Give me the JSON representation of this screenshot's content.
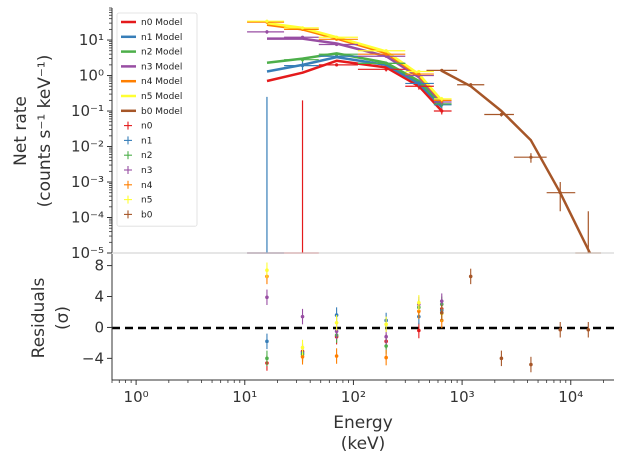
{
  "chart_data": [
    {
      "type": "scatter",
      "subtype": "spectrum",
      "xscale": "log",
      "yscale": "log",
      "xlim": [
        0.6,
        25000
      ],
      "ylim": [
        1e-05,
        80
      ],
      "ylabel_lines": [
        "Net rate",
        "(counts s⁻¹ keV⁻¹)"
      ],
      "yticks": [
        {
          "value": 10,
          "label": "10¹"
        },
        {
          "value": 1,
          "label": "10⁰"
        },
        {
          "value": 0.1,
          "label": "10⁻¹"
        },
        {
          "value": 0.01,
          "label": "10⁻²"
        },
        {
          "value": 0.001,
          "label": "10⁻³"
        },
        {
          "value": 0.0001,
          "label": "10⁻⁴"
        },
        {
          "value": 1e-05,
          "label": "10⁻⁵"
        }
      ],
      "legend_position": "upper-left",
      "models": [
        {
          "name": "n0 Model",
          "color": "#e41a1c",
          "points": [
            [
              16,
              0.7
            ],
            [
              34,
              1.2
            ],
            [
              70,
              2.6
            ],
            [
              200,
              1.7
            ],
            [
              400,
              0.5
            ],
            [
              650,
              0.1
            ]
          ]
        },
        {
          "name": "n1 Model",
          "color": "#377eb8",
          "points": [
            [
              16,
              1.3
            ],
            [
              34,
              2.0
            ],
            [
              70,
              3.3
            ],
            [
              200,
              2.0
            ],
            [
              400,
              0.6
            ],
            [
              650,
              0.13
            ]
          ]
        },
        {
          "name": "n2 Model",
          "color": "#4daf4a",
          "points": [
            [
              16,
              2.3
            ],
            [
              34,
              3.0
            ],
            [
              70,
              4.2
            ],
            [
              200,
              2.3
            ],
            [
              400,
              0.7
            ],
            [
              650,
              0.15
            ]
          ]
        },
        {
          "name": "n3 Model",
          "color": "#984ea3",
          "points": [
            [
              16,
              11
            ],
            [
              34,
              11
            ],
            [
              70,
              8
            ],
            [
              200,
              3.5
            ],
            [
              400,
              0.9
            ],
            [
              650,
              0.17
            ]
          ]
        },
        {
          "name": "n4 Model",
          "color": "#ff7f00",
          "points": [
            [
              16,
              27
            ],
            [
              34,
              20
            ],
            [
              70,
              11
            ],
            [
              200,
              4.3
            ],
            [
              400,
              1.0
            ],
            [
              650,
              0.19
            ]
          ]
        },
        {
          "name": "n5 Model",
          "color": "#ffff33",
          "points": [
            [
              16,
              30
            ],
            [
              34,
              22
            ],
            [
              70,
              12
            ],
            [
              200,
              4.8
            ],
            [
              400,
              1.1
            ],
            [
              650,
              0.2
            ]
          ]
        },
        {
          "name": "b0 Model",
          "color": "#a65628",
          "points": [
            [
              650,
              1.35
            ],
            [
              1200,
              0.5
            ],
            [
              2300,
              0.1
            ],
            [
              4300,
              0.015
            ],
            [
              8000,
              0.0005
            ],
            [
              15000,
              8e-06
            ]
          ]
        }
      ],
      "data": [
        {
          "name": "n0",
          "color": "#e41a1c",
          "points": [
            {
              "x": 16,
              "xlo": 10.5,
              "xhi": 23,
              "y": 1e-05,
              "ylo": 1e-05,
              "yhi": 1e-05
            },
            {
              "x": 34,
              "xlo": 23,
              "xhi": 48,
              "y": 1e-05,
              "ylo": 1e-05,
              "yhi": 0.2
            },
            {
              "x": 70,
              "xlo": 48,
              "xhi": 110,
              "y": 2.0,
              "ylo": 1.8,
              "yhi": 2.2
            },
            {
              "x": 200,
              "xlo": 110,
              "xhi": 300,
              "y": 1.5,
              "ylo": 1.3,
              "yhi": 1.7
            },
            {
              "x": 400,
              "xlo": 300,
              "xhi": 550,
              "y": 0.5,
              "ylo": 0.4,
              "yhi": 0.6
            },
            {
              "x": 650,
              "xlo": 550,
              "xhi": 800,
              "y": 0.1,
              "ylo": 0.08,
              "yhi": 0.12
            }
          ]
        },
        {
          "name": "n1",
          "color": "#377eb8",
          "points": [
            {
              "x": 16,
              "xlo": 10.5,
              "xhi": 23,
              "y": 1e-05,
              "ylo": 1e-05,
              "yhi": 0.25
            },
            {
              "x": 34,
              "xlo": 23,
              "xhi": 48,
              "y": 1.9,
              "ylo": 1.4,
              "yhi": 2.5
            },
            {
              "x": 70,
              "xlo": 48,
              "xhi": 110,
              "y": 3.5,
              "ylo": 3.2,
              "yhi": 3.8
            },
            {
              "x": 200,
              "xlo": 110,
              "xhi": 300,
              "y": 2.2,
              "ylo": 2.0,
              "yhi": 2.4
            },
            {
              "x": 400,
              "xlo": 300,
              "xhi": 550,
              "y": 0.6,
              "ylo": 0.5,
              "yhi": 0.7
            },
            {
              "x": 650,
              "xlo": 550,
              "xhi": 800,
              "y": 0.15,
              "ylo": 0.12,
              "yhi": 0.18
            }
          ]
        },
        {
          "name": "n2",
          "color": "#4daf4a",
          "points": [
            {
              "x": 34,
              "xlo": 23,
              "xhi": 48,
              "y": 2.8,
              "ylo": 2.4,
              "yhi": 3.2
            },
            {
              "x": 70,
              "xlo": 48,
              "xhi": 110,
              "y": 4.0,
              "ylo": 3.7,
              "yhi": 4.3
            },
            {
              "x": 200,
              "xlo": 110,
              "xhi": 300,
              "y": 2.2,
              "ylo": 2.0,
              "yhi": 2.4
            },
            {
              "x": 650,
              "xlo": 550,
              "xhi": 800,
              "y": 0.16,
              "ylo": 0.13,
              "yhi": 0.19
            }
          ]
        },
        {
          "name": "n3",
          "color": "#984ea3",
          "points": [
            {
              "x": 16,
              "xlo": 10.5,
              "xhi": 23,
              "y": 17,
              "ylo": 15,
              "yhi": 19
            },
            {
              "x": 34,
              "xlo": 23,
              "xhi": 48,
              "y": 12,
              "ylo": 11,
              "yhi": 13
            },
            {
              "x": 70,
              "xlo": 48,
              "xhi": 110,
              "y": 7.5,
              "ylo": 7,
              "yhi": 8
            },
            {
              "x": 200,
              "xlo": 110,
              "xhi": 300,
              "y": 3.5,
              "ylo": 3.2,
              "yhi": 3.8
            },
            {
              "x": 400,
              "xlo": 300,
              "xhi": 550,
              "y": 1.0,
              "ylo": 0.9,
              "yhi": 1.1
            },
            {
              "x": 650,
              "xlo": 550,
              "xhi": 800,
              "y": 0.18,
              "ylo": 0.15,
              "yhi": 0.21
            }
          ]
        },
        {
          "name": "n4",
          "color": "#ff7f00",
          "points": [
            {
              "x": 16,
              "xlo": 10.5,
              "xhi": 23,
              "y": 32,
              "ylo": 29,
              "yhi": 35
            },
            {
              "x": 34,
              "xlo": 23,
              "xhi": 48,
              "y": 20,
              "ylo": 18.5,
              "yhi": 21.5
            },
            {
              "x": 70,
              "xlo": 48,
              "xhi": 110,
              "y": 10.5,
              "ylo": 9.8,
              "yhi": 11.2
            },
            {
              "x": 200,
              "xlo": 110,
              "xhi": 300,
              "y": 4.0,
              "ylo": 3.7,
              "yhi": 4.3
            },
            {
              "x": 400,
              "xlo": 300,
              "xhi": 550,
              "y": 1.1,
              "ylo": 1.0,
              "yhi": 1.2
            },
            {
              "x": 650,
              "xlo": 550,
              "xhi": 800,
              "y": 0.2,
              "ylo": 0.17,
              "yhi": 0.23
            }
          ]
        },
        {
          "name": "n5",
          "color": "#ffff33",
          "points": [
            {
              "x": 16,
              "xlo": 10.5,
              "xhi": 23,
              "y": 34,
              "ylo": 31,
              "yhi": 37
            },
            {
              "x": 34,
              "xlo": 23,
              "xhi": 48,
              "y": 22,
              "ylo": 20.5,
              "yhi": 23.5
            },
            {
              "x": 70,
              "xlo": 48,
              "xhi": 110,
              "y": 12,
              "ylo": 11.2,
              "yhi": 12.8
            },
            {
              "x": 200,
              "xlo": 110,
              "xhi": 300,
              "y": 5.0,
              "ylo": 4.6,
              "yhi": 5.4
            },
            {
              "x": 400,
              "xlo": 300,
              "xhi": 550,
              "y": 1.3,
              "ylo": 1.2,
              "yhi": 1.4
            },
            {
              "x": 650,
              "xlo": 550,
              "xhi": 800,
              "y": 0.22,
              "ylo": 0.19,
              "yhi": 0.25
            }
          ]
        },
        {
          "name": "b0",
          "color": "#a65628",
          "points": [
            {
              "x": 650,
              "xlo": 470,
              "xhi": 900,
              "y": 1.4,
              "ylo": 1.3,
              "yhi": 1.5
            },
            {
              "x": 1200,
              "xlo": 900,
              "xhi": 1600,
              "y": 0.55,
              "ylo": 0.5,
              "yhi": 0.6
            },
            {
              "x": 2300,
              "xlo": 1600,
              "xhi": 3000,
              "y": 0.08,
              "ylo": 0.07,
              "yhi": 0.09
            },
            {
              "x": 4300,
              "xlo": 3000,
              "xhi": 6000,
              "y": 0.005,
              "ylo": 0.0035,
              "yhi": 0.0065
            },
            {
              "x": 8000,
              "xlo": 6000,
              "xhi": 11000,
              "y": 0.0005,
              "ylo": 0.00015,
              "yhi": 0.001
            },
            {
              "x": 14500,
              "xlo": 11000,
              "xhi": 19000,
              "y": 1e-05,
              "ylo": 1e-05,
              "yhi": 0.00015
            }
          ]
        }
      ]
    },
    {
      "type": "scatter",
      "subtype": "residuals",
      "xscale": "log",
      "xlim": [
        0.6,
        25000
      ],
      "ylim": [
        -6.8,
        9.5
      ],
      "xlabel_lines": [
        "Energy",
        "(keV)"
      ],
      "ylabel_lines": [
        "Residuals",
        "(σ)"
      ],
      "xticks": [
        {
          "value": 1,
          "label": "10⁰"
        },
        {
          "value": 10,
          "label": "10¹"
        },
        {
          "value": 100,
          "label": "10²"
        },
        {
          "value": 1000,
          "label": "10³"
        },
        {
          "value": 10000,
          "label": "10⁴"
        }
      ],
      "yticks": [
        {
          "value": 8,
          "label": "8"
        },
        {
          "value": 4,
          "label": "4"
        },
        {
          "value": 0,
          "label": "0"
        },
        {
          "value": -4,
          "label": "−4"
        }
      ],
      "zero_line": {
        "value": 0,
        "style": "dashed",
        "color": "#000000"
      },
      "series": [
        {
          "name": "n0",
          "color": "#e41a1c",
          "points": [
            [
              16,
              -4.6
            ],
            [
              34,
              -3.1
            ],
            [
              70,
              -1.2
            ],
            [
              200,
              -1.8
            ],
            [
              400,
              -0.4
            ],
            [
              650,
              2.4
            ]
          ]
        },
        {
          "name": "n1",
          "color": "#377eb8",
          "points": [
            [
              16,
              -1.8
            ],
            [
              34,
              -3.3
            ],
            [
              70,
              1.6
            ],
            [
              200,
              0.9
            ],
            [
              400,
              1.4
            ],
            [
              650,
              2.2
            ]
          ]
        },
        {
          "name": "n2",
          "color": "#4daf4a",
          "points": [
            [
              16,
              -4.0
            ],
            [
              34,
              -3.5
            ],
            [
              70,
              -1.0
            ],
            [
              200,
              -2.4
            ],
            [
              400,
              2.6
            ],
            [
              650,
              3.0
            ]
          ]
        },
        {
          "name": "n3",
          "color": "#984ea3",
          "points": [
            [
              16,
              3.9
            ],
            [
              34,
              1.4
            ],
            [
              70,
              -0.5
            ],
            [
              200,
              -1.2
            ],
            [
              400,
              3.0
            ],
            [
              650,
              3.4
            ]
          ]
        },
        {
          "name": "n4",
          "color": "#ff7f00",
          "points": [
            [
              16,
              6.6
            ],
            [
              34,
              -3.8
            ],
            [
              70,
              -3.7
            ],
            [
              200,
              -3.9
            ],
            [
              400,
              2.1
            ],
            [
              650,
              0.9
            ]
          ]
        },
        {
          "name": "n5",
          "color": "#ffff33",
          "points": [
            [
              16,
              7.4
            ],
            [
              34,
              -2.6
            ],
            [
              70,
              0.6
            ],
            [
              200,
              0.4
            ],
            [
              400,
              3.2
            ],
            [
              650,
              1.8
            ]
          ]
        },
        {
          "name": "b0",
          "color": "#a65628",
          "points": [
            [
              650,
              1.9
            ],
            [
              1200,
              6.6
            ],
            [
              2300,
              -4.0
            ],
            [
              4300,
              -4.8
            ],
            [
              8000,
              -0.3
            ],
            [
              14500,
              -0.3
            ]
          ]
        }
      ]
    }
  ]
}
